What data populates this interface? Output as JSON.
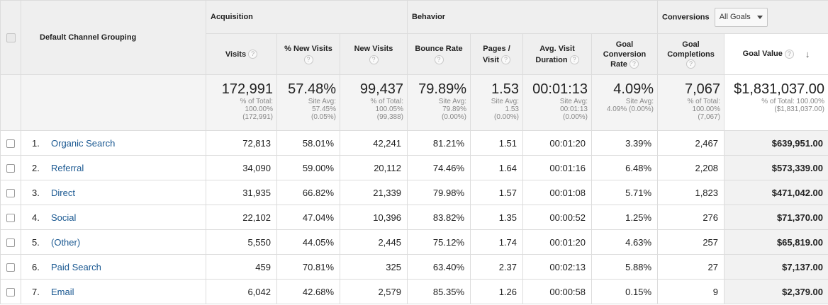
{
  "groups": {
    "acquisition": "Acquisition",
    "behavior": "Behavior",
    "conversions": "Conversions"
  },
  "dimension_header": "Default Channel Grouping",
  "goal_select": {
    "value": "All Goals"
  },
  "help_glyph": "?",
  "sort_glyph": "↓",
  "columns": {
    "visits": {
      "label": "Visits"
    },
    "pct_new_visits": {
      "label": "% New Visits"
    },
    "new_visits": {
      "label": "New Visits"
    },
    "bounce_rate": {
      "label": "Bounce Rate"
    },
    "pages_visit": {
      "line1": "Pages /",
      "line2": "Visit"
    },
    "avg_duration": {
      "line1": "Avg. Visit",
      "line2": "Duration"
    },
    "goal_conv_rate": {
      "line1": "Goal",
      "line2": "Conversion",
      "line3": "Rate"
    },
    "goal_completions": {
      "line1": "Goal",
      "line2": "Completions"
    },
    "goal_value": {
      "label": "Goal Value"
    }
  },
  "totals": {
    "visits": {
      "value": "172,991",
      "sub": "% of Total:\n100.00%\n(172,991)"
    },
    "pct_new_visits": {
      "value": "57.48%",
      "sub": "Site Avg:\n57.45%\n(0.05%)"
    },
    "new_visits": {
      "value": "99,437",
      "sub": "% of Total:\n100.05%\n(99,388)"
    },
    "bounce_rate": {
      "value": "79.89%",
      "sub": "Site Avg:\n79.89%\n(0.00%)"
    },
    "pages_visit": {
      "value": "1.53",
      "sub": "Site Avg:\n1.53\n(0.00%)"
    },
    "avg_duration": {
      "value": "00:01:13",
      "sub": "Site Avg:\n00:01:13\n(0.00%)"
    },
    "goal_conv_rate": {
      "value": "4.09%",
      "sub": "Site Avg:\n4.09% (0.00%)"
    },
    "goal_completions": {
      "value": "7,067",
      "sub": "% of Total:\n100.00%\n(7,067)"
    },
    "goal_value": {
      "value": "$1,831,037.00",
      "sub": "% of Total: 100.00%\n($1,831,037.00)"
    }
  },
  "rows": [
    {
      "num": "1.",
      "name": "Organic Search",
      "visits": "72,813",
      "pct_new": "58.01%",
      "new_visits": "42,241",
      "bounce": "81.21%",
      "pages": "1.51",
      "duration": "00:01:20",
      "conv_rate": "3.39%",
      "completions": "2,467",
      "value": "$639,951.00"
    },
    {
      "num": "2.",
      "name": "Referral",
      "visits": "34,090",
      "pct_new": "59.00%",
      "new_visits": "20,112",
      "bounce": "74.46%",
      "pages": "1.64",
      "duration": "00:01:16",
      "conv_rate": "6.48%",
      "completions": "2,208",
      "value": "$573,339.00"
    },
    {
      "num": "3.",
      "name": "Direct",
      "visits": "31,935",
      "pct_new": "66.82%",
      "new_visits": "21,339",
      "bounce": "79.98%",
      "pages": "1.57",
      "duration": "00:01:08",
      "conv_rate": "5.71%",
      "completions": "1,823",
      "value": "$471,042.00"
    },
    {
      "num": "4.",
      "name": "Social",
      "visits": "22,102",
      "pct_new": "47.04%",
      "new_visits": "10,396",
      "bounce": "83.82%",
      "pages": "1.35",
      "duration": "00:00:52",
      "conv_rate": "1.25%",
      "completions": "276",
      "value": "$71,370.00"
    },
    {
      "num": "5.",
      "name": "(Other)",
      "visits": "5,550",
      "pct_new": "44.05%",
      "new_visits": "2,445",
      "bounce": "75.12%",
      "pages": "1.74",
      "duration": "00:01:20",
      "conv_rate": "4.63%",
      "completions": "257",
      "value": "$65,819.00"
    },
    {
      "num": "6.",
      "name": "Paid Search",
      "visits": "459",
      "pct_new": "70.81%",
      "new_visits": "325",
      "bounce": "63.40%",
      "pages": "2.37",
      "duration": "00:02:13",
      "conv_rate": "5.88%",
      "completions": "27",
      "value": "$7,137.00"
    },
    {
      "num": "7.",
      "name": "Email",
      "visits": "6,042",
      "pct_new": "42.68%",
      "new_visits": "2,579",
      "bounce": "85.35%",
      "pages": "1.26",
      "duration": "00:00:58",
      "conv_rate": "0.15%",
      "completions": "9",
      "value": "$2,379.00"
    }
  ],
  "colors": {
    "link": "#1a5891",
    "header_bg": "#efefef",
    "sorted_bg": "#f2f2f2"
  }
}
